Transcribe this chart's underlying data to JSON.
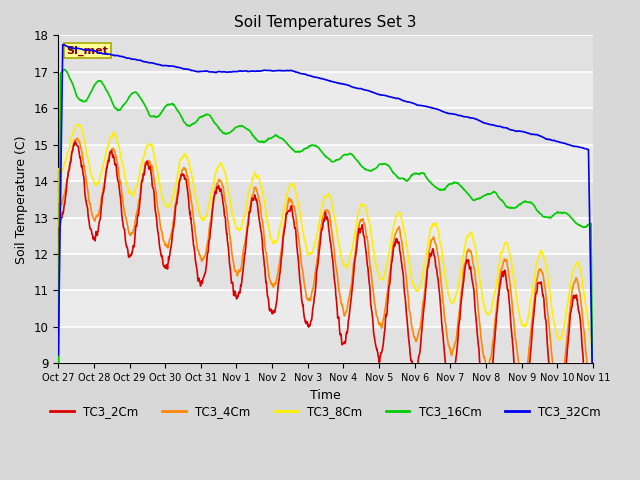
{
  "title": "Soil Temperatures Set 3",
  "xlabel": "Time",
  "ylabel": "Soil Temperature (C)",
  "ylim": [
    9.0,
    18.0
  ],
  "yticks": [
    9.0,
    10.0,
    11.0,
    12.0,
    13.0,
    14.0,
    15.0,
    16.0,
    17.0,
    18.0
  ],
  "xtick_labels": [
    "Oct 27",
    "Oct 28",
    "Oct 29",
    "Oct 30",
    "Oct 31",
    "Nov 1",
    "Nov 2",
    "Nov 3",
    "Nov 4",
    "Nov 5",
    "Nov 6",
    "Nov 7",
    "Nov 8",
    "Nov 9",
    "Nov 10",
    "Nov 11"
  ],
  "colors": {
    "TC3_2Cm": "#dd0000",
    "TC3_4Cm": "#ff8800",
    "TC3_8Cm": "#ffee00",
    "TC3_16Cm": "#00cc00",
    "TC3_32Cm": "#0000ee"
  },
  "legend_label": "SI_met",
  "bg_color": "#d8d8d8",
  "plot_bg": "#ebebeb",
  "line_width": 1.2,
  "num_days": 15,
  "points_per_day": 96
}
